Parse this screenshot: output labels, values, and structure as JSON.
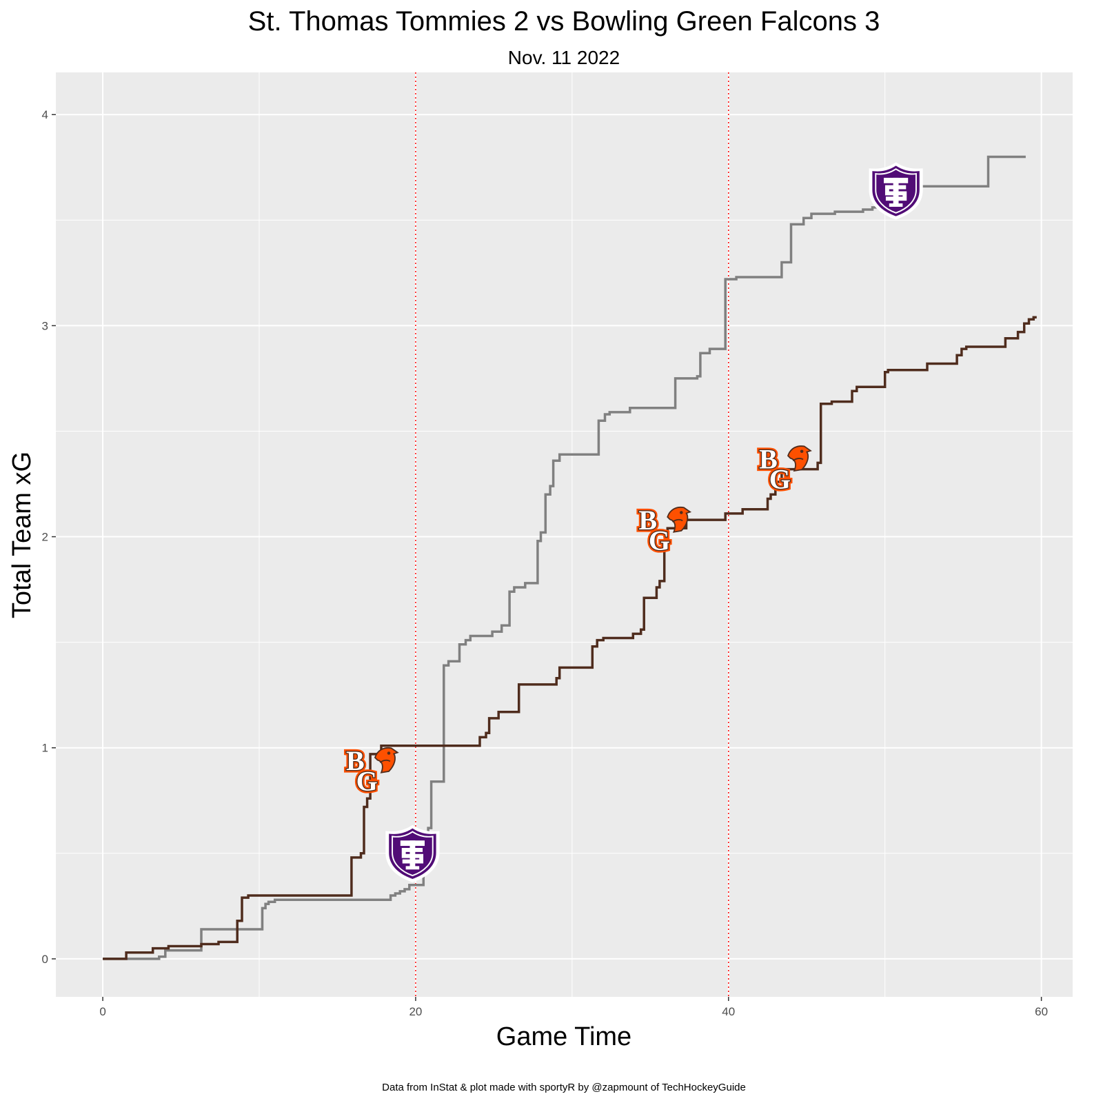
{
  "chart_data": {
    "type": "line",
    "title": "St. Thomas Tommies 2 vs Bowling Green Falcons 3",
    "subtitle": "Nov. 11 2022",
    "xlabel": "Game Time",
    "ylabel": "Total Team xG",
    "caption": "Data from InStat & plot made with sportyR by @zapmount of TechHockeyGuide",
    "xlim": [
      -3,
      62
    ],
    "ylim": [
      -0.18,
      4.2
    ],
    "x_ticks": [
      0,
      20,
      40,
      60
    ],
    "y_ticks": [
      0,
      1,
      2,
      3,
      4
    ],
    "grid": true,
    "period_markers": [
      20,
      40
    ],
    "colors": {
      "panel": "#ebebeb",
      "grid": "#ffffff",
      "period_marker": "#ff0000",
      "st_thomas": "#808080",
      "bowling_green": "#4f2c1d",
      "st_thomas_logo": "#510c76",
      "bowling_green_logo": "#fe5000"
    },
    "series": [
      {
        "key": "st_thomas",
        "color": "#808080",
        "points": [
          [
            0.0,
            0.0
          ],
          [
            3.6,
            0.0
          ],
          [
            3.6,
            0.01
          ],
          [
            4.0,
            0.01
          ],
          [
            4.0,
            0.04
          ],
          [
            6.3,
            0.04
          ],
          [
            6.3,
            0.14
          ],
          [
            10.2,
            0.14
          ],
          [
            10.2,
            0.24
          ],
          [
            10.4,
            0.24
          ],
          [
            10.4,
            0.26
          ],
          [
            10.6,
            0.26
          ],
          [
            10.6,
            0.27
          ],
          [
            11.0,
            0.27
          ],
          [
            11.0,
            0.28
          ],
          [
            18.4,
            0.28
          ],
          [
            18.4,
            0.3
          ],
          [
            18.7,
            0.3
          ],
          [
            18.7,
            0.31
          ],
          [
            19.0,
            0.31
          ],
          [
            19.0,
            0.32
          ],
          [
            19.3,
            0.32
          ],
          [
            19.3,
            0.33
          ],
          [
            19.6,
            0.33
          ],
          [
            19.6,
            0.35
          ],
          [
            20.5,
            0.35
          ],
          [
            20.5,
            0.45
          ],
          [
            20.8,
            0.45
          ],
          [
            20.8,
            0.62
          ],
          [
            21.0,
            0.62
          ],
          [
            21.0,
            0.84
          ],
          [
            21.8,
            0.84
          ],
          [
            21.8,
            1.39
          ],
          [
            22.1,
            1.39
          ],
          [
            22.1,
            1.41
          ],
          [
            22.8,
            1.41
          ],
          [
            22.8,
            1.49
          ],
          [
            23.2,
            1.49
          ],
          [
            23.2,
            1.51
          ],
          [
            23.5,
            1.51
          ],
          [
            23.5,
            1.53
          ],
          [
            24.9,
            1.53
          ],
          [
            24.9,
            1.55
          ],
          [
            25.5,
            1.55
          ],
          [
            25.5,
            1.58
          ],
          [
            26.0,
            1.58
          ],
          [
            26.0,
            1.74
          ],
          [
            26.3,
            1.74
          ],
          [
            26.3,
            1.76
          ],
          [
            27.0,
            1.76
          ],
          [
            27.0,
            1.78
          ],
          [
            27.8,
            1.78
          ],
          [
            27.8,
            1.98
          ],
          [
            28.0,
            1.98
          ],
          [
            28.0,
            2.02
          ],
          [
            28.3,
            2.02
          ],
          [
            28.3,
            2.2
          ],
          [
            28.6,
            2.2
          ],
          [
            28.6,
            2.24
          ],
          [
            28.8,
            2.24
          ],
          [
            28.8,
            2.36
          ],
          [
            29.2,
            2.36
          ],
          [
            29.2,
            2.39
          ],
          [
            31.7,
            2.39
          ],
          [
            31.7,
            2.55
          ],
          [
            32.1,
            2.55
          ],
          [
            32.1,
            2.58
          ],
          [
            32.4,
            2.58
          ],
          [
            32.4,
            2.59
          ],
          [
            33.7,
            2.59
          ],
          [
            33.7,
            2.61
          ],
          [
            36.6,
            2.61
          ],
          [
            36.6,
            2.75
          ],
          [
            38.0,
            2.75
          ],
          [
            38.0,
            2.76
          ],
          [
            38.2,
            2.76
          ],
          [
            38.2,
            2.87
          ],
          [
            38.8,
            2.87
          ],
          [
            38.8,
            2.89
          ],
          [
            39.8,
            2.89
          ],
          [
            39.8,
            3.22
          ],
          [
            40.5,
            3.22
          ],
          [
            40.5,
            3.23
          ],
          [
            43.4,
            3.23
          ],
          [
            43.4,
            3.3
          ],
          [
            44.0,
            3.3
          ],
          [
            44.0,
            3.48
          ],
          [
            44.8,
            3.48
          ],
          [
            44.8,
            3.51
          ],
          [
            45.3,
            3.51
          ],
          [
            45.3,
            3.53
          ],
          [
            46.8,
            3.53
          ],
          [
            46.8,
            3.54
          ],
          [
            48.6,
            3.54
          ],
          [
            48.6,
            3.55
          ],
          [
            49.2,
            3.55
          ],
          [
            49.2,
            3.56
          ],
          [
            50.0,
            3.56
          ],
          [
            50.0,
            3.59
          ],
          [
            51.0,
            3.59
          ],
          [
            51.0,
            3.63
          ],
          [
            51.6,
            3.63
          ],
          [
            51.6,
            3.66
          ],
          [
            56.6,
            3.66
          ],
          [
            56.6,
            3.8
          ],
          [
            59.0,
            3.8
          ]
        ]
      },
      {
        "key": "bowling_green",
        "color": "#4f2c1d",
        "points": [
          [
            0.0,
            0.0
          ],
          [
            1.5,
            0.0
          ],
          [
            1.5,
            0.03
          ],
          [
            3.2,
            0.03
          ],
          [
            3.2,
            0.05
          ],
          [
            4.2,
            0.05
          ],
          [
            4.2,
            0.06
          ],
          [
            6.3,
            0.06
          ],
          [
            6.3,
            0.07
          ],
          [
            7.4,
            0.07
          ],
          [
            7.4,
            0.08
          ],
          [
            8.6,
            0.08
          ],
          [
            8.6,
            0.18
          ],
          [
            8.9,
            0.18
          ],
          [
            8.9,
            0.29
          ],
          [
            9.3,
            0.29
          ],
          [
            9.3,
            0.3
          ],
          [
            15.9,
            0.3
          ],
          [
            15.9,
            0.48
          ],
          [
            16.5,
            0.48
          ],
          [
            16.5,
            0.5
          ],
          [
            16.7,
            0.5
          ],
          [
            16.7,
            0.72
          ],
          [
            16.9,
            0.72
          ],
          [
            16.9,
            0.76
          ],
          [
            17.1,
            0.76
          ],
          [
            17.1,
            0.97
          ],
          [
            17.8,
            0.97
          ],
          [
            17.8,
            1.01
          ],
          [
            24.1,
            1.01
          ],
          [
            24.1,
            1.05
          ],
          [
            24.5,
            1.05
          ],
          [
            24.5,
            1.07
          ],
          [
            24.7,
            1.07
          ],
          [
            24.7,
            1.14
          ],
          [
            25.3,
            1.14
          ],
          [
            25.3,
            1.17
          ],
          [
            26.6,
            1.17
          ],
          [
            26.6,
            1.3
          ],
          [
            29.0,
            1.3
          ],
          [
            29.0,
            1.33
          ],
          [
            29.2,
            1.33
          ],
          [
            29.2,
            1.38
          ],
          [
            31.3,
            1.38
          ],
          [
            31.3,
            1.48
          ],
          [
            31.6,
            1.48
          ],
          [
            31.6,
            1.51
          ],
          [
            32.0,
            1.51
          ],
          [
            32.0,
            1.52
          ],
          [
            33.9,
            1.52
          ],
          [
            33.9,
            1.54
          ],
          [
            34.4,
            1.54
          ],
          [
            34.4,
            1.56
          ],
          [
            34.6,
            1.56
          ],
          [
            34.6,
            1.71
          ],
          [
            35.4,
            1.71
          ],
          [
            35.4,
            1.76
          ],
          [
            35.6,
            1.76
          ],
          [
            35.6,
            1.79
          ],
          [
            35.9,
            1.79
          ],
          [
            35.9,
            1.98
          ],
          [
            36.1,
            1.98
          ],
          [
            36.1,
            2.04
          ],
          [
            37.3,
            2.04
          ],
          [
            37.3,
            2.08
          ],
          [
            39.8,
            2.08
          ],
          [
            39.8,
            2.11
          ],
          [
            40.9,
            2.11
          ],
          [
            40.9,
            2.13
          ],
          [
            42.5,
            2.13
          ],
          [
            42.5,
            2.18
          ],
          [
            42.7,
            2.18
          ],
          [
            42.7,
            2.2
          ],
          [
            43.0,
            2.2
          ],
          [
            43.0,
            2.26
          ],
          [
            43.4,
            2.26
          ],
          [
            43.4,
            2.32
          ],
          [
            45.7,
            2.32
          ],
          [
            45.7,
            2.35
          ],
          [
            45.9,
            2.35
          ],
          [
            45.9,
            2.63
          ],
          [
            46.6,
            2.63
          ],
          [
            46.6,
            2.64
          ],
          [
            47.9,
            2.64
          ],
          [
            47.9,
            2.69
          ],
          [
            48.2,
            2.69
          ],
          [
            48.2,
            2.71
          ],
          [
            50.0,
            2.71
          ],
          [
            50.0,
            2.78
          ],
          [
            50.2,
            2.78
          ],
          [
            50.2,
            2.79
          ],
          [
            52.7,
            2.79
          ],
          [
            52.7,
            2.82
          ],
          [
            54.6,
            2.82
          ],
          [
            54.6,
            2.86
          ],
          [
            54.9,
            2.86
          ],
          [
            54.9,
            2.89
          ],
          [
            55.2,
            2.89
          ],
          [
            55.2,
            2.9
          ],
          [
            57.7,
            2.9
          ],
          [
            57.7,
            2.94
          ],
          [
            58.5,
            2.94
          ],
          [
            58.5,
            2.97
          ],
          [
            58.9,
            2.97
          ],
          [
            58.9,
            3.01
          ],
          [
            59.2,
            3.01
          ],
          [
            59.2,
            3.03
          ],
          [
            59.5,
            3.03
          ],
          [
            59.5,
            3.04
          ],
          [
            59.7,
            3.04
          ]
        ]
      }
    ],
    "goals": [
      {
        "team": "bowling_green",
        "x": 17.2,
        "y": 0.9
      },
      {
        "team": "st_thomas",
        "x": 19.8,
        "y": 0.5
      },
      {
        "team": "bowling_green",
        "x": 35.9,
        "y": 2.04
      },
      {
        "team": "bowling_green",
        "x": 43.6,
        "y": 2.33
      },
      {
        "team": "st_thomas",
        "x": 50.7,
        "y": 3.64
      }
    ]
  }
}
